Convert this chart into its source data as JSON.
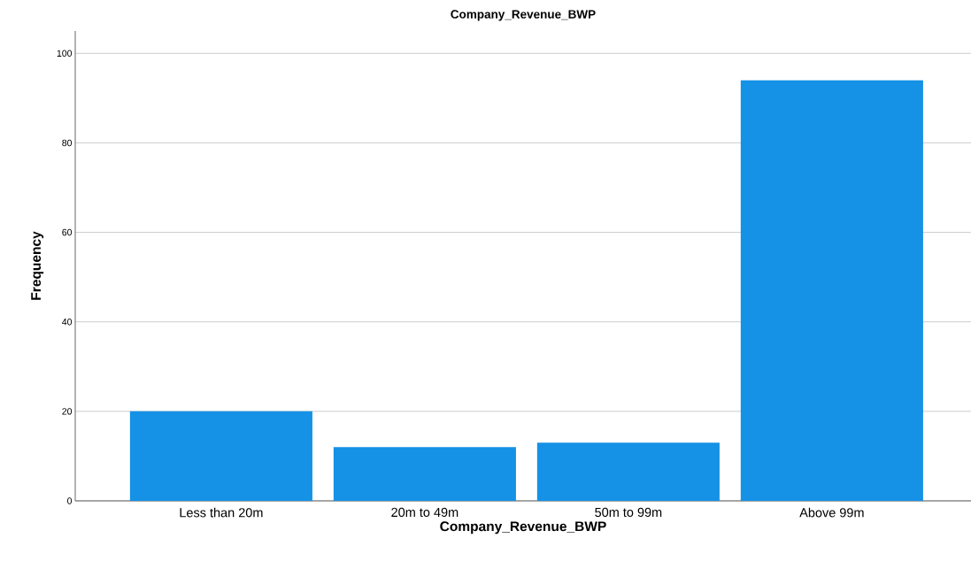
{
  "chart_data": {
    "type": "bar",
    "title": "Company_Revenue_BWP",
    "xlabel": "Company_Revenue_BWP",
    "ylabel": "Frequency",
    "categories": [
      "Less than 20m",
      "20m to 49m",
      "50m to 99m",
      "Above 99m"
    ],
    "values": [
      20,
      12,
      13,
      94
    ],
    "color": "#1591e6",
    "ylim": [
      0,
      105
    ],
    "yticks": [
      0,
      20,
      40,
      60,
      80,
      100
    ],
    "grid": "y"
  }
}
